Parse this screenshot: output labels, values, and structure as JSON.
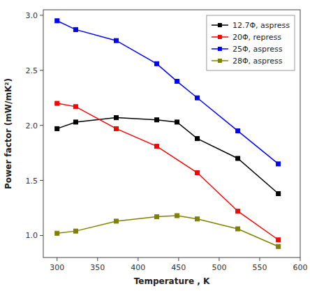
{
  "chart_data": {
    "type": "line",
    "xlabel": "Temperature , K",
    "ylabel": "Power factor (mW/mK²)",
    "series": [
      {
        "name": "12.7Φ, aspress",
        "color": "#000000",
        "x": [
          300,
          323,
          373,
          423,
          448,
          473,
          523,
          573
        ],
        "values": [
          1.97,
          2.03,
          2.07,
          2.05,
          2.03,
          1.88,
          1.7,
          1.38
        ]
      },
      {
        "name": "20Φ, repress",
        "color": "#ff0000",
        "x": [
          300,
          323,
          373,
          423,
          473,
          523,
          573
        ],
        "values": [
          2.2,
          2.17,
          1.97,
          1.81,
          1.57,
          1.22,
          0.96
        ]
      },
      {
        "name": "25Φ, aspress",
        "color": "#0000ff",
        "x": [
          300,
          323,
          373,
          423,
          448,
          473,
          523,
          573
        ],
        "values": [
          2.95,
          2.87,
          2.77,
          2.56,
          2.4,
          2.25,
          1.95,
          1.65
        ]
      },
      {
        "name": "28Φ, aspress",
        "color": "#808000",
        "x": [
          300,
          323,
          373,
          423,
          448,
          473,
          523,
          573
        ],
        "values": [
          1.02,
          1.04,
          1.13,
          1.17,
          1.18,
          1.15,
          1.06,
          0.9
        ]
      }
    ],
    "xlim": [
      283,
      600
    ],
    "ylim": [
      0.8,
      3.05
    ],
    "xticks": [
      300,
      350,
      400,
      450,
      500,
      550,
      600
    ],
    "yticks": [
      {
        "value": 1.0,
        "label": "1.0"
      },
      1.5,
      {
        "value": 2.0,
        "label": "2.0"
      },
      2.5,
      {
        "value": 3.0,
        "label": "3.0"
      }
    ],
    "legend": "upper right",
    "marker": "square",
    "grid": false
  }
}
